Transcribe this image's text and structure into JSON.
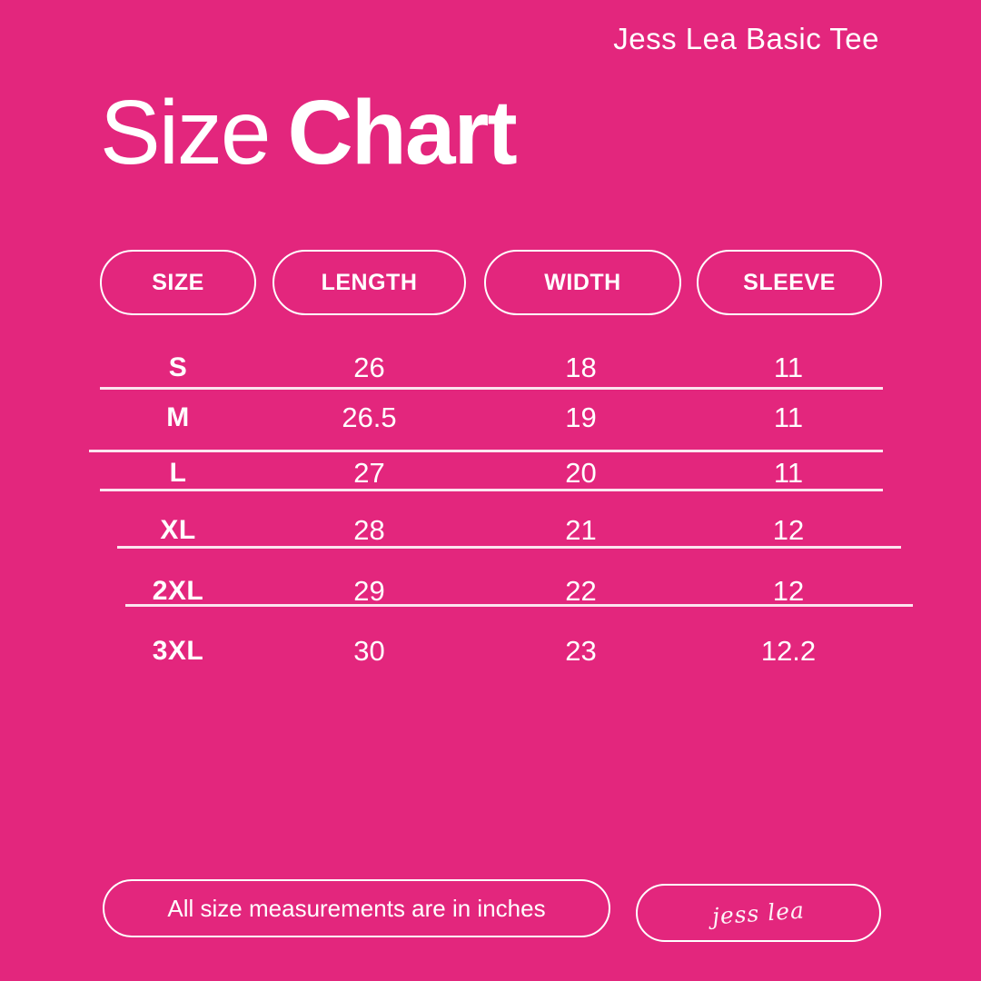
{
  "colors": {
    "background": "#E3267D",
    "foreground": "#FFFFFF"
  },
  "brand": {
    "label": "Jess Lea Basic Tee"
  },
  "title": {
    "word_regular": "Size",
    "word_bold": "Chart"
  },
  "chart_data": {
    "type": "table",
    "title": "Size Chart",
    "columns": [
      "SIZE",
      "LENGTH",
      "WIDTH",
      "SLEEVE"
    ],
    "rows": [
      [
        "S",
        "26",
        "18",
        "11"
      ],
      [
        "M",
        "26.5",
        "19",
        "11"
      ],
      [
        "L",
        "27",
        "20",
        "11"
      ],
      [
        "XL",
        "28",
        "21",
        "12"
      ],
      [
        "2XL",
        "29",
        "22",
        "12"
      ],
      [
        "3XL",
        "30",
        "23",
        "12.2"
      ]
    ],
    "units": "inches"
  },
  "footer": {
    "note": "All size measurements are in inches",
    "signature": "jess lea"
  }
}
